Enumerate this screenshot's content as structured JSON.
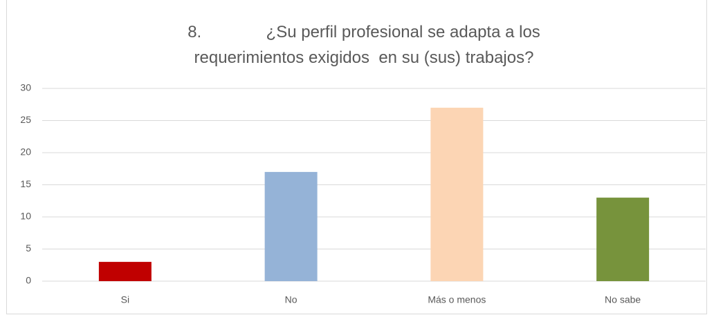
{
  "chart_data": {
    "type": "bar",
    "title": "8.              ¿Su perfil profesional se adapta a los requerimientos exigidos  en su (sus) trabajos?",
    "categories": [
      "Si",
      "No",
      "Más o menos",
      "No sabe"
    ],
    "values": [
      3,
      17,
      27,
      13
    ],
    "colors": [
      "#c00000",
      "#95b3d7",
      "#fcd5b4",
      "#77933c"
    ],
    "ylim": [
      0,
      30
    ],
    "yticks": [
      0,
      5,
      10,
      15,
      20,
      25,
      30
    ],
    "grid": true
  }
}
